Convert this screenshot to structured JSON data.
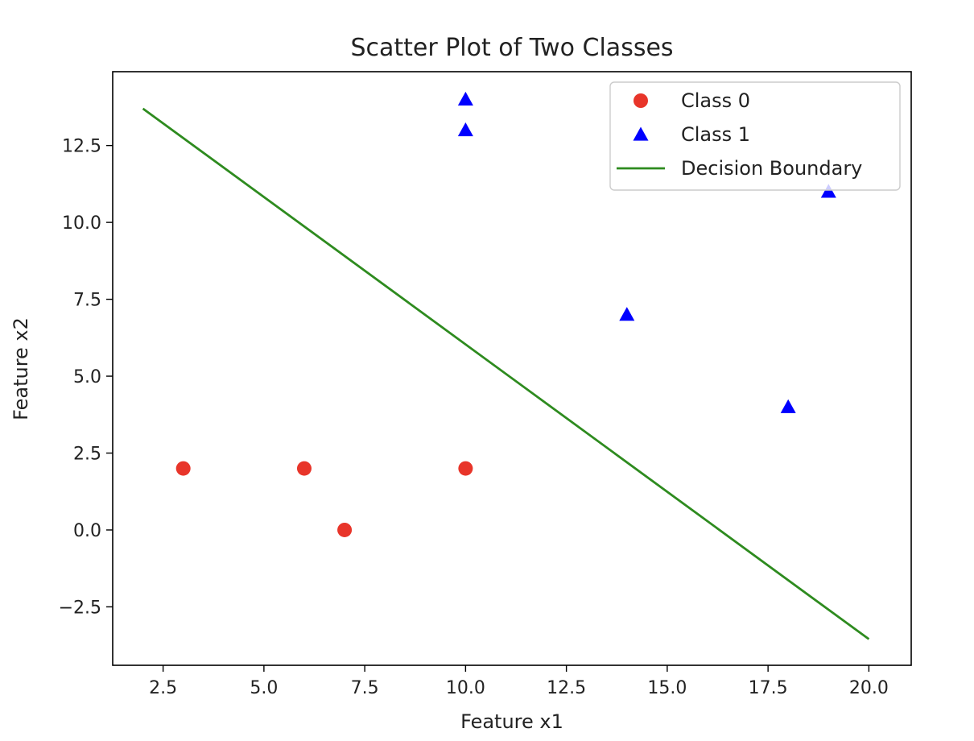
{
  "chart_data": {
    "type": "scatter",
    "title": "Scatter Plot of Two Classes",
    "xlabel": "Feature x1",
    "ylabel": "Feature x2",
    "xlim": [
      1.25,
      21.05
    ],
    "ylim": [
      -4.4,
      14.9
    ],
    "xticks": [
      2.5,
      5.0,
      7.5,
      10.0,
      12.5,
      15.0,
      17.5,
      20.0
    ],
    "xtick_labels": [
      "2.5",
      "5.0",
      "7.5",
      "10.0",
      "12.5",
      "15.0",
      "17.5",
      "20.0"
    ],
    "yticks": [
      -2.5,
      0.0,
      2.5,
      5.0,
      7.5,
      10.0,
      12.5
    ],
    "ytick_labels": [
      "−2.5",
      "0.0",
      "2.5",
      "5.0",
      "7.5",
      "10.0",
      "12.5"
    ],
    "grid": false,
    "legend_position": "top-right",
    "series": [
      {
        "name": "Class 0",
        "kind": "scatter",
        "marker": "circle",
        "color": "#e8352a",
        "points": [
          [
            3,
            2
          ],
          [
            6,
            2
          ],
          [
            7,
            0
          ],
          [
            10,
            2
          ]
        ]
      },
      {
        "name": "Class 1",
        "kind": "scatter",
        "marker": "triangle",
        "color": "#0000ff",
        "points": [
          [
            10,
            14
          ],
          [
            10,
            13
          ],
          [
            14,
            7
          ],
          [
            18,
            4
          ],
          [
            19,
            11
          ]
        ]
      },
      {
        "name": "Decision Boundary",
        "kind": "line",
        "color": "#2e8b1f",
        "points": [
          [
            2,
            13.7
          ],
          [
            20,
            -3.55
          ]
        ]
      }
    ]
  }
}
